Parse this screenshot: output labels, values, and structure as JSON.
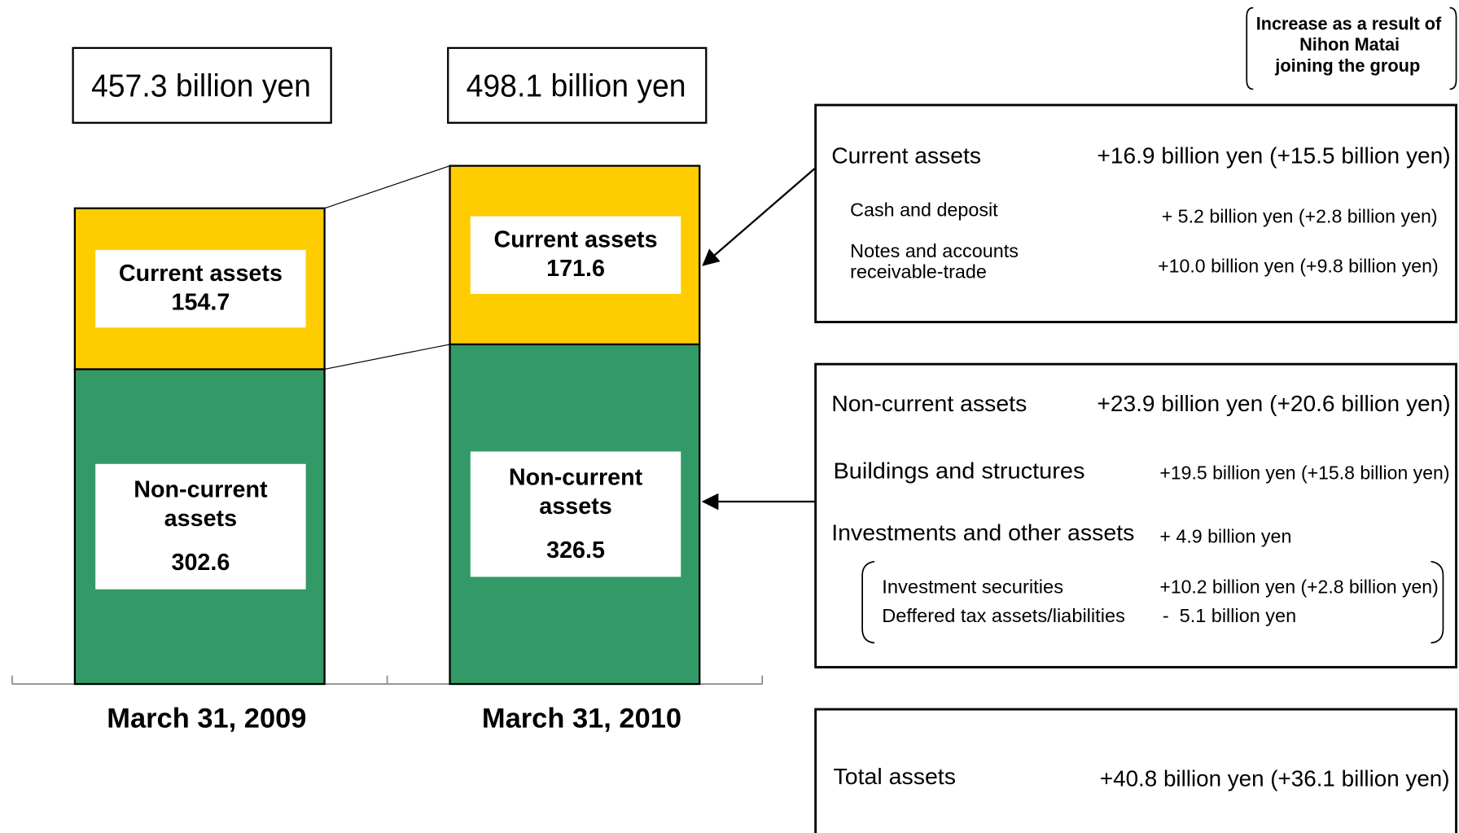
{
  "chart_data": {
    "type": "stacked_bar",
    "categories": [
      "March 31, 2009",
      "March 31, 2010"
    ],
    "series": [
      {
        "name": "Non-current assets",
        "color": "#339966",
        "values": [
          302.6,
          326.5
        ]
      },
      {
        "name": "Current assets",
        "color": "#ffcc00",
        "values": [
          154.7,
          171.6
        ]
      }
    ],
    "totals": [
      "457.3 billion yen",
      "498.1 billion yen"
    ]
  },
  "note": [
    "Increase as a result of",
    "Nihon Matai",
    "joining the group"
  ],
  "panels": [
    [
      {
        "label": "Current assets",
        "value": "+16.9 billion yen (+15.5 billion yen)"
      },
      {
        "label": "Cash and deposit",
        "value": "+ 5.2 billion yen (+2.8 billion yen)"
      },
      {
        "label": [
          "Notes and accounts",
          "receivable-trade"
        ],
        "value": "+10.0 billion yen (+9.8 billion yen)"
      }
    ],
    [
      {
        "label": "Non-current assets",
        "value": "+23.9 billion yen (+20.6 billion yen)"
      },
      {
        "label": "Buildings and structures",
        "value": "+19.5 billion yen (+15.8 billion yen)"
      },
      {
        "label": "Investments and other assets",
        "value": "+ 4.9 billion yen"
      },
      {
        "label": "Investment securities",
        "value": "+10.2 billion yen (+2.8 billion yen)"
      },
      {
        "label": "Deffered tax assets/liabilities",
        "value": "-  5.1 billion yen"
      }
    ],
    [
      {
        "label": "Total assets",
        "value": "+40.8 billion yen (+36.1 billion yen)"
      }
    ]
  ]
}
